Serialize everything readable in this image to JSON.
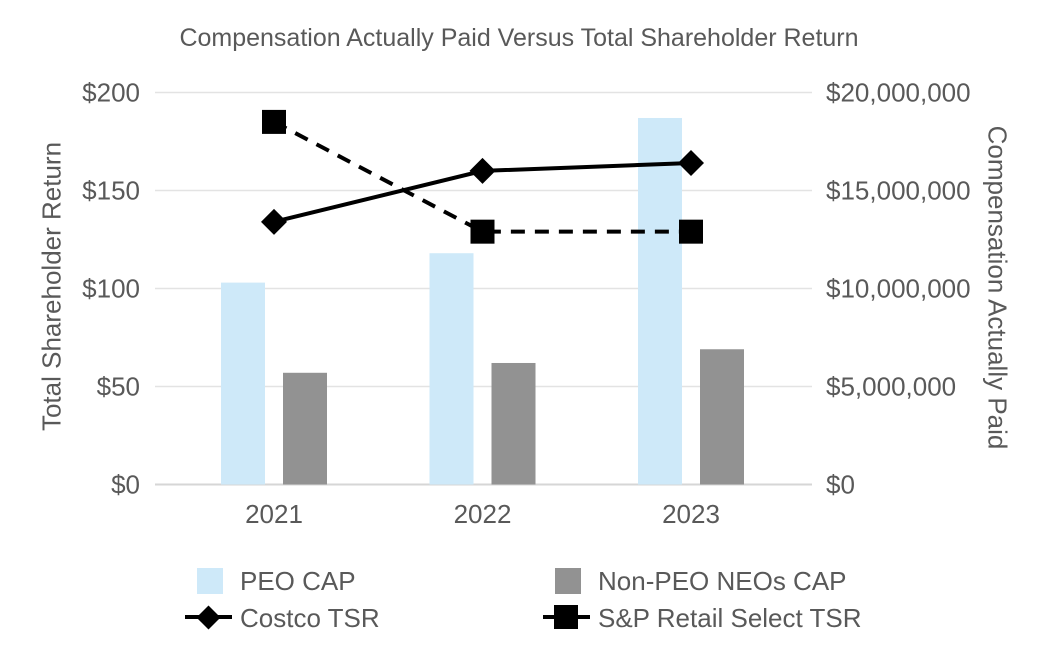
{
  "chart_data": {
    "type": "combo-bar-line",
    "title": "Compensation Actually Paid Versus Total Shareholder Return",
    "categories": [
      "2021",
      "2022",
      "2023"
    ],
    "bar_series": [
      {
        "name": "PEO CAP",
        "axis": "right",
        "color": "#cee9f9",
        "values": [
          10300000,
          11800000,
          18700000
        ]
      },
      {
        "name": "Non-PEO NEOs CAP",
        "axis": "right",
        "color": "#929292",
        "values": [
          5700000,
          6200000,
          6900000
        ]
      }
    ],
    "line_series": [
      {
        "name": "Costco TSR",
        "axis": "left",
        "color": "#000000",
        "style": "solid",
        "marker": "diamond",
        "values": [
          134,
          160,
          164
        ]
      },
      {
        "name": "S&P Retail Select TSR",
        "axis": "left",
        "color": "#000000",
        "style": "dashed",
        "marker": "square",
        "values": [
          185,
          129,
          129
        ]
      }
    ],
    "left_axis": {
      "label": "Total Shareholder Return",
      "min": 0,
      "max": 200,
      "step": 50,
      "ticks": [
        "$0",
        "$50",
        "$100",
        "$150",
        "$200"
      ]
    },
    "right_axis": {
      "label": "Compensation Actually Paid",
      "min": 0,
      "max": 20000000,
      "step": 5000000,
      "ticks": [
        "$0",
        "$5,000,000",
        "$10,000,000",
        "$15,000,000",
        "$20,000,000"
      ]
    },
    "grid": true,
    "legend_position": "bottom",
    "colors": {
      "text": "#595959",
      "gridline": "#e3e3e3",
      "axis_line": "#d6d6d6",
      "background": "#ffffff"
    }
  }
}
